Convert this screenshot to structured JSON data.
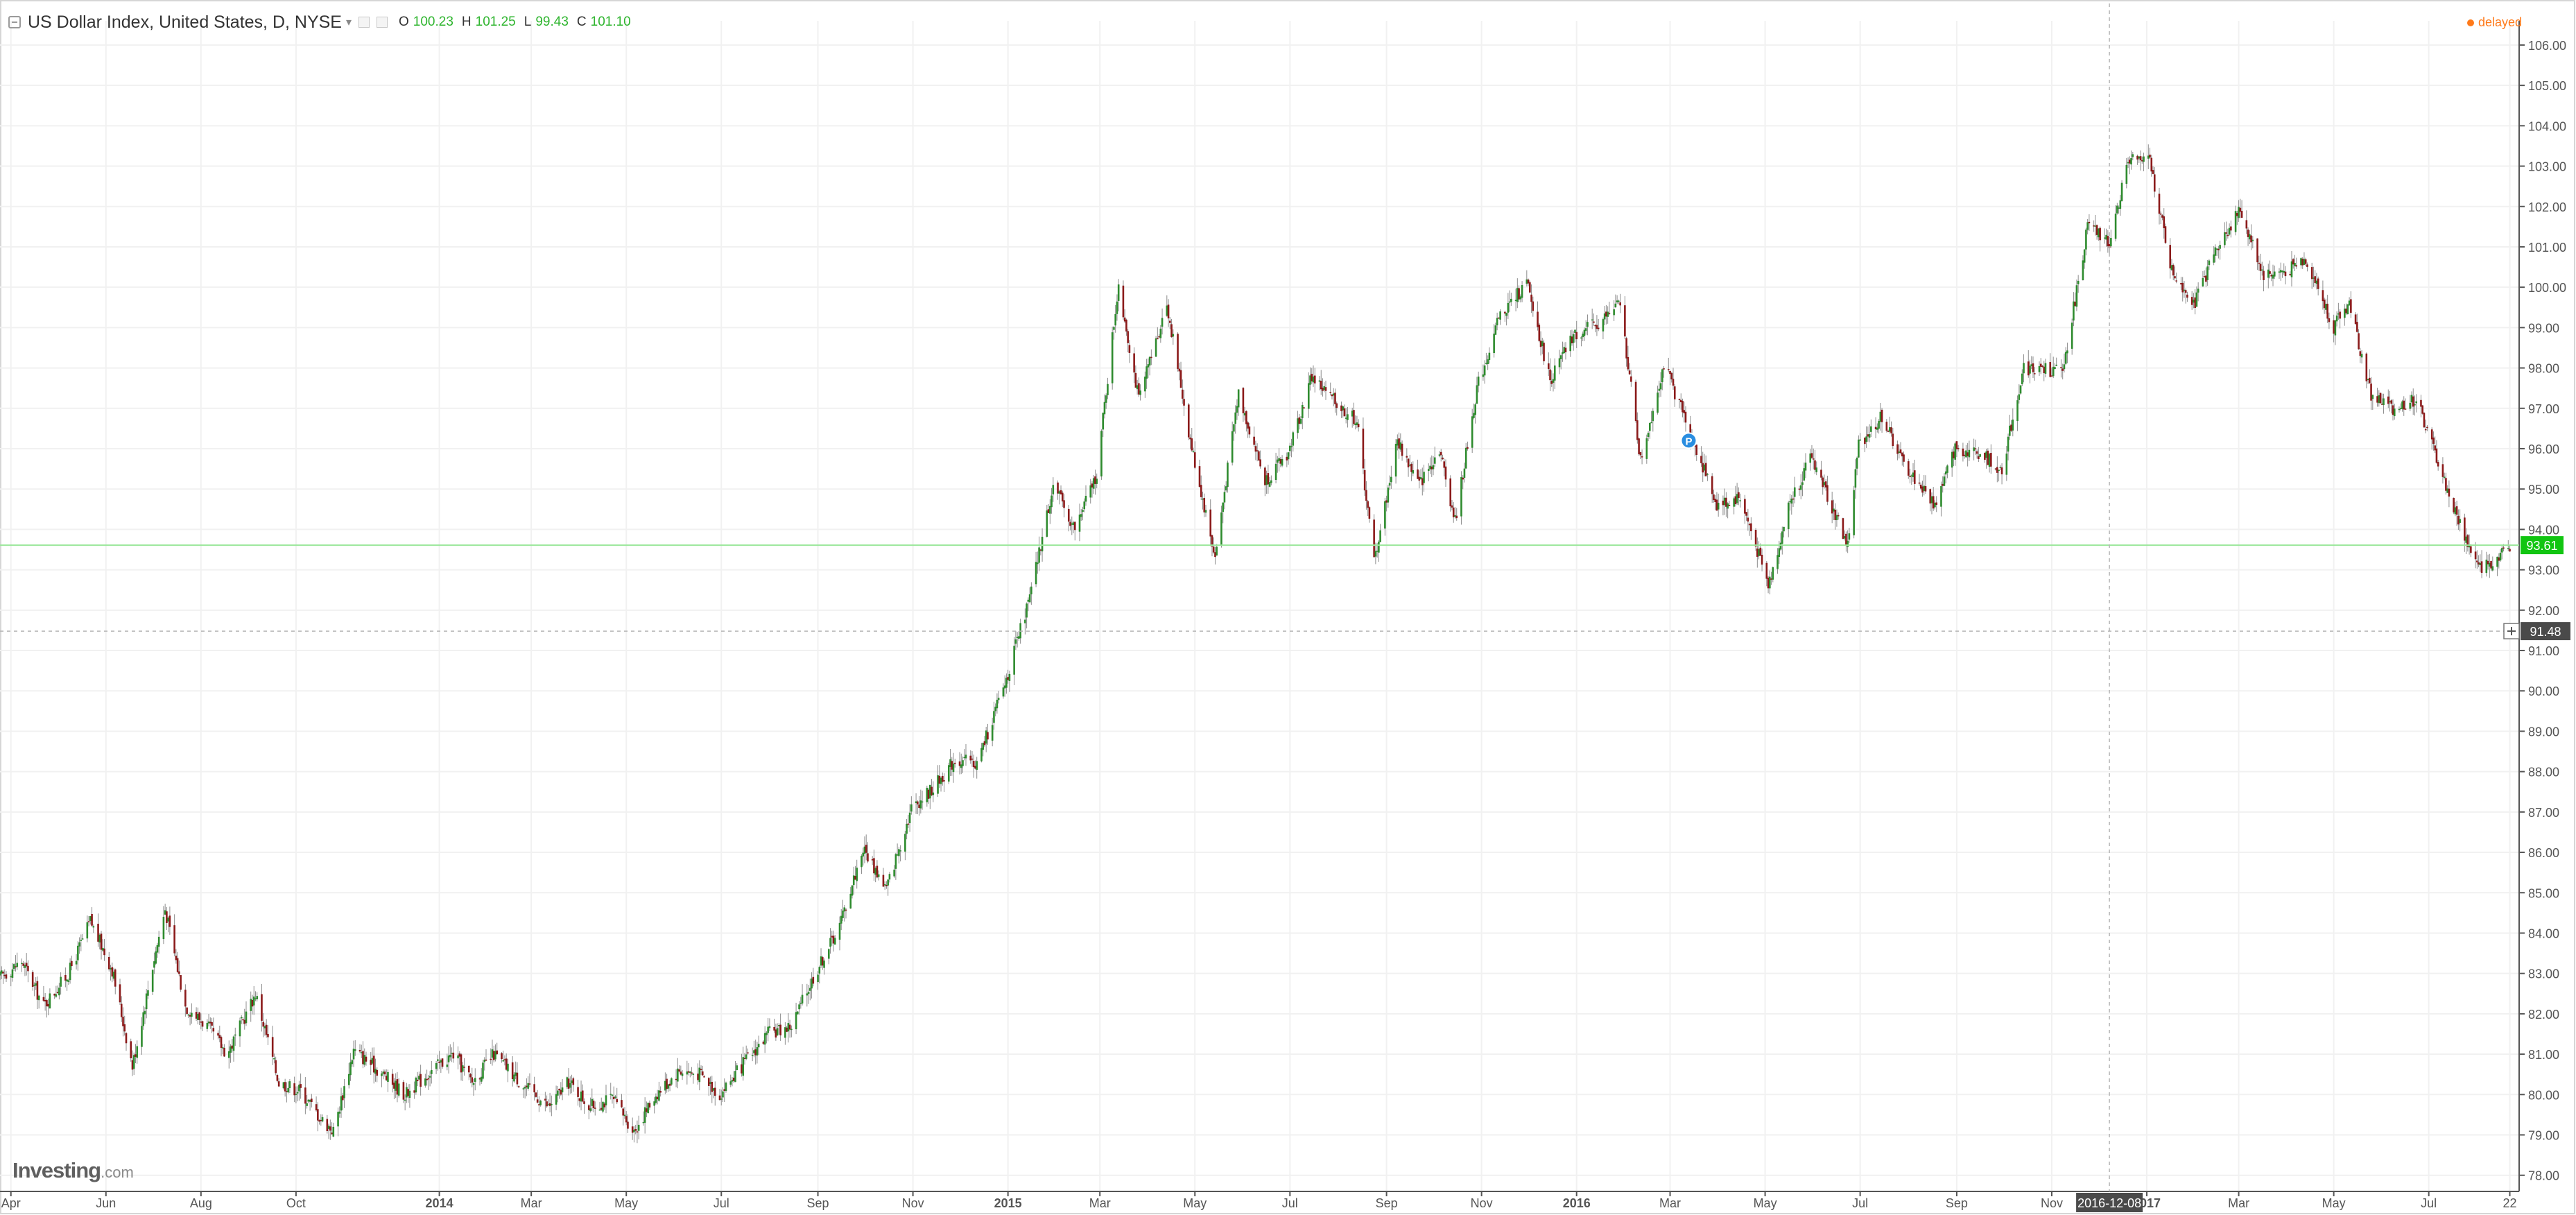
{
  "legend": {
    "title": "US Dollar Index, United States, D, NYSE",
    "o_label": "O",
    "o_value": "100.23",
    "h_label": "H",
    "h_value": "101.25",
    "l_label": "L",
    "l_value": "99.43",
    "c_label": "C",
    "c_value": "101.10"
  },
  "status": {
    "delayed": "delayed"
  },
  "brand": {
    "name": "Investing",
    "suffix": ".com"
  },
  "price_labels": {
    "last": "93.61",
    "crosshair": "91.48"
  },
  "crosshair_date_label": "2016-12-08",
  "colors": {
    "up": "#2e8b2e",
    "down": "#8b1a1a",
    "last_price": "#11c511",
    "crosshair": "#4a4a4a",
    "delayed": "#ff7a1a"
  },
  "chart_data": {
    "type": "candlestick",
    "title": "US Dollar Index, United States, D, NYSE",
    "y_ticks": [
      "78.00",
      "79.00",
      "80.00",
      "81.00",
      "82.00",
      "83.00",
      "84.00",
      "85.00",
      "86.00",
      "87.00",
      "88.00",
      "89.00",
      "90.00",
      "91.00",
      "92.00",
      "93.00",
      "94.00",
      "95.00",
      "96.00",
      "97.00",
      "98.00",
      "99.00",
      "100.00",
      "101.00",
      "102.00",
      "103.00",
      "104.00",
      "105.00",
      "106.00"
    ],
    "ylim": [
      77.6,
      106.6
    ],
    "x_ticks": [
      {
        "label": "Apr",
        "date": "2013-04-01"
      },
      {
        "label": "Jun",
        "date": "2013-06-01"
      },
      {
        "label": "Aug",
        "date": "2013-08-01"
      },
      {
        "label": "Oct",
        "date": "2013-10-01"
      },
      {
        "label": "2014",
        "date": "2014-01-01"
      },
      {
        "label": "Mar",
        "date": "2014-03-01"
      },
      {
        "label": "May",
        "date": "2014-05-01"
      },
      {
        "label": "Jul",
        "date": "2014-07-01"
      },
      {
        "label": "Sep",
        "date": "2014-09-01"
      },
      {
        "label": "Nov",
        "date": "2014-11-01"
      },
      {
        "label": "2015",
        "date": "2015-01-01"
      },
      {
        "label": "Mar",
        "date": "2015-03-01"
      },
      {
        "label": "May",
        "date": "2015-05-01"
      },
      {
        "label": "Jul",
        "date": "2015-07-01"
      },
      {
        "label": "Sep",
        "date": "2015-09-01"
      },
      {
        "label": "Nov",
        "date": "2015-11-01"
      },
      {
        "label": "2016",
        "date": "2016-01-01"
      },
      {
        "label": "Mar",
        "date": "2016-03-01"
      },
      {
        "label": "May",
        "date": "2016-05-01"
      },
      {
        "label": "Jul",
        "date": "2016-07-01"
      },
      {
        "label": "Sep",
        "date": "2016-09-01"
      },
      {
        "label": "Nov",
        "date": "2016-11-01"
      },
      {
        "label": "2017",
        "date": "2017-01-01"
      },
      {
        "label": "Mar",
        "date": "2017-03-01"
      },
      {
        "label": "May",
        "date": "2017-05-01"
      },
      {
        "label": "Jul",
        "date": "2017-07-01"
      },
      {
        "label": "22",
        "date": "2017-08-22"
      }
    ],
    "x_range": [
      "2013-03-25",
      "2017-08-28"
    ],
    "last_price": 93.61,
    "crosshair": {
      "date": "2016-12-08",
      "price": 91.48
    },
    "marker": {
      "date": "2016-03-13",
      "price": 96.2,
      "label": "P"
    },
    "series_path": [
      [
        "2013-03-25",
        82.9
      ],
      [
        "2013-04-08",
        83.3
      ],
      [
        "2013-04-22",
        82.2
      ],
      [
        "2013-05-08",
        83.0
      ],
      [
        "2013-05-22",
        84.3
      ],
      [
        "2013-06-05",
        83.1
      ],
      [
        "2013-06-18",
        80.7
      ],
      [
        "2013-07-01",
        83.2
      ],
      [
        "2013-07-09",
        84.6
      ],
      [
        "2013-07-22",
        82.2
      ],
      [
        "2013-08-05",
        81.7
      ],
      [
        "2013-08-18",
        81.0
      ],
      [
        "2013-09-05",
        82.5
      ],
      [
        "2013-09-20",
        80.3
      ],
      [
        "2013-10-04",
        80.1
      ],
      [
        "2013-10-17",
        79.4
      ],
      [
        "2013-10-25",
        79.1
      ],
      [
        "2013-11-07",
        81.1
      ],
      [
        "2013-11-20",
        80.7
      ],
      [
        "2013-12-10",
        80.0
      ],
      [
        "2013-12-27",
        80.6
      ],
      [
        "2014-01-10",
        81.0
      ],
      [
        "2014-01-22",
        80.3
      ],
      [
        "2014-02-05",
        81.0
      ],
      [
        "2014-02-25",
        80.2
      ],
      [
        "2014-03-12",
        79.7
      ],
      [
        "2014-03-25",
        80.3
      ],
      [
        "2014-04-08",
        79.7
      ],
      [
        "2014-04-22",
        79.9
      ],
      [
        "2014-05-06",
        79.1
      ],
      [
        "2014-05-20",
        80.0
      ],
      [
        "2014-06-04",
        80.6
      ],
      [
        "2014-06-18",
        80.5
      ],
      [
        "2014-06-30",
        80.0
      ],
      [
        "2014-07-16",
        80.8
      ],
      [
        "2014-07-31",
        81.5
      ],
      [
        "2014-08-15",
        81.7
      ],
      [
        "2014-08-29",
        82.9
      ],
      [
        "2014-09-15",
        84.2
      ],
      [
        "2014-09-30",
        86.1
      ],
      [
        "2014-10-15",
        85.1
      ],
      [
        "2014-10-31",
        87.1
      ],
      [
        "2014-11-14",
        87.6
      ],
      [
        "2014-11-28",
        88.3
      ],
      [
        "2014-12-12",
        88.2
      ],
      [
        "2014-12-31",
        90.3
      ],
      [
        "2015-01-15",
        92.3
      ],
      [
        "2015-01-30",
        95.1
      ],
      [
        "2015-02-13",
        94.0
      ],
      [
        "2015-02-27",
        95.4
      ],
      [
        "2015-03-13",
        100.1
      ],
      [
        "2015-03-26",
        97.2
      ],
      [
        "2015-04-13",
        99.6
      ],
      [
        "2015-04-28",
        96.2
      ],
      [
        "2015-05-14",
        93.3
      ],
      [
        "2015-05-29",
        97.4
      ],
      [
        "2015-06-15",
        95.2
      ],
      [
        "2015-06-30",
        95.9
      ],
      [
        "2015-07-15",
        97.8
      ],
      [
        "2015-07-31",
        97.1
      ],
      [
        "2015-08-13",
        96.7
      ],
      [
        "2015-08-24",
        93.2
      ],
      [
        "2015-09-08",
        96.2
      ],
      [
        "2015-09-22",
        95.1
      ],
      [
        "2015-10-05",
        96.0
      ],
      [
        "2015-10-15",
        94.2
      ],
      [
        "2015-10-29",
        97.5
      ],
      [
        "2015-11-13",
        99.3
      ],
      [
        "2015-11-30",
        100.1
      ],
      [
        "2015-12-15",
        97.7
      ],
      [
        "2015-12-30",
        98.8
      ],
      [
        "2016-01-15",
        99.1
      ],
      [
        "2016-01-29",
        99.6
      ],
      [
        "2016-02-11",
        95.7
      ],
      [
        "2016-02-26",
        98.1
      ],
      [
        "2016-03-15",
        96.3
      ],
      [
        "2016-03-31",
        94.6
      ],
      [
        "2016-04-15",
        94.8
      ],
      [
        "2016-05-03",
        92.6
      ],
      [
        "2016-05-17",
        94.7
      ],
      [
        "2016-05-31",
        95.8
      ],
      [
        "2016-06-23",
        93.6
      ],
      [
        "2016-06-30",
        96.1
      ],
      [
        "2016-07-15",
        96.8
      ],
      [
        "2016-07-29",
        95.6
      ],
      [
        "2016-08-18",
        94.6
      ],
      [
        "2016-08-31",
        96.0
      ],
      [
        "2016-09-15",
        95.9
      ],
      [
        "2016-09-30",
        95.5
      ],
      [
        "2016-10-14",
        98.0
      ],
      [
        "2016-11-08",
        97.9
      ],
      [
        "2016-11-24",
        101.5
      ],
      [
        "2016-12-08",
        101.1
      ],
      [
        "2016-12-20",
        103.2
      ],
      [
        "2017-01-03",
        103.1
      ],
      [
        "2017-01-17",
        100.4
      ],
      [
        "2017-02-01",
        99.6
      ],
      [
        "2017-02-15",
        101.0
      ],
      [
        "2017-03-02",
        101.9
      ],
      [
        "2017-03-17",
        100.3
      ],
      [
        "2017-03-31",
        100.4
      ],
      [
        "2017-04-13",
        100.7
      ],
      [
        "2017-05-01",
        99.0
      ],
      [
        "2017-05-11",
        99.6
      ],
      [
        "2017-05-25",
        97.3
      ],
      [
        "2017-06-08",
        97.0
      ],
      [
        "2017-06-23",
        97.2
      ],
      [
        "2017-07-03",
        96.1
      ],
      [
        "2017-07-17",
        94.5
      ],
      [
        "2017-08-02",
        93.0
      ],
      [
        "2017-08-11",
        93.2
      ],
      [
        "2017-08-22",
        93.6
      ]
    ]
  }
}
